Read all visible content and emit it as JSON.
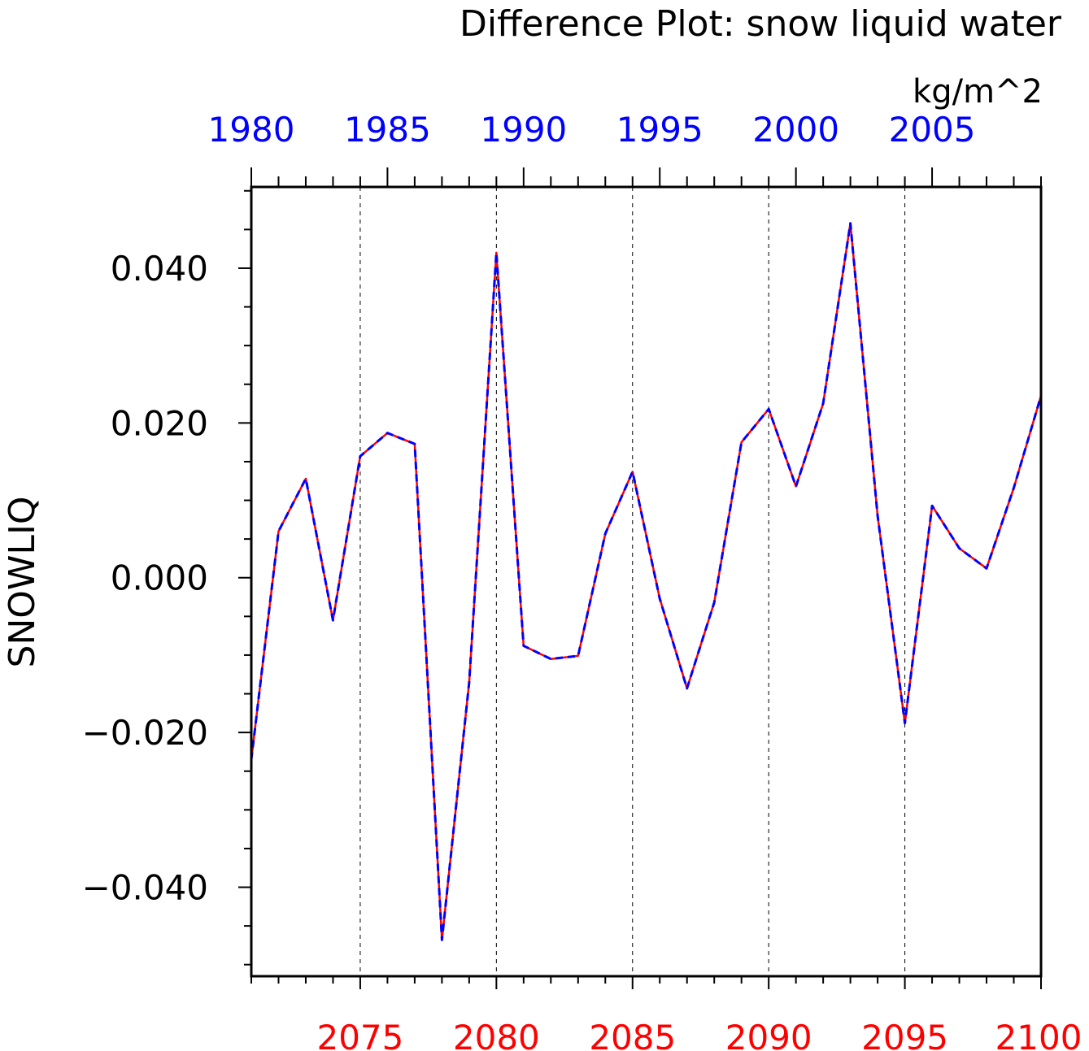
{
  "chart_data": {
    "type": "line",
    "title": "Difference Plot: snow liquid water",
    "units": "kg/m^2",
    "ylabel": "SNOWLIQ",
    "ylim": [
      -0.0515,
      0.0505
    ],
    "yticks": [
      -0.04,
      -0.02,
      0.0,
      0.02,
      0.04
    ],
    "ytick_labels": [
      "−0.040",
      "−0.020",
      "0.000",
      "0.020",
      "0.040"
    ],
    "bottom_axis": {
      "range": [
        2071,
        2100
      ],
      "ticks": [
        2075,
        2080,
        2085,
        2090,
        2095,
        2100
      ],
      "tick_labels": [
        "2075",
        "2080",
        "2085",
        "2090",
        "2095",
        "2100"
      ],
      "color": "#ff0000"
    },
    "top_axis": {
      "range": [
        1980,
        2009
      ],
      "ticks": [
        1980,
        1985,
        1990,
        1995,
        2000,
        2005
      ],
      "tick_labels": [
        "1980",
        "1985",
        "1990",
        "1995",
        "2000",
        "2005"
      ],
      "color": "#0000ff"
    },
    "grid": "vertical dashed lines at bottom-axis major ticks",
    "x": [
      2071,
      2072,
      2073,
      2074,
      2075,
      2076,
      2077,
      2078,
      2079,
      2080,
      2081,
      2082,
      2083,
      2084,
      2085,
      2086,
      2087,
      2088,
      2089,
      2090,
      2091,
      2092,
      2093,
      2094,
      2095,
      2096,
      2097,
      2098,
      2099,
      2100
    ],
    "series": [
      {
        "line_style": "solid",
        "color": "#ff0000",
        "values": [
          -0.0235,
          0.006,
          0.0128,
          -0.0055,
          0.0157,
          0.0187,
          0.0173,
          -0.0468,
          -0.0135,
          0.042,
          -0.0088,
          -0.0105,
          -0.0101,
          0.0057,
          0.0137,
          -0.0027,
          -0.0143,
          -0.0032,
          0.0175,
          0.0218,
          0.0118,
          0.0225,
          0.0458,
          0.008,
          -0.0188,
          0.0093,
          0.0038,
          0.0012,
          0.0116,
          0.0235
        ]
      },
      {
        "line_style": "dashed",
        "color": "#0000ff",
        "values": [
          -0.0235,
          0.006,
          0.0128,
          -0.0055,
          0.0157,
          0.0187,
          0.0173,
          -0.0468,
          -0.0135,
          0.042,
          -0.0088,
          -0.0105,
          -0.0101,
          0.0057,
          0.0137,
          -0.0027,
          -0.0143,
          -0.0032,
          0.0175,
          0.0218,
          0.0118,
          0.0225,
          0.0458,
          0.008,
          -0.0188,
          0.0093,
          0.0038,
          0.0012,
          0.0116,
          0.0235
        ]
      }
    ]
  }
}
